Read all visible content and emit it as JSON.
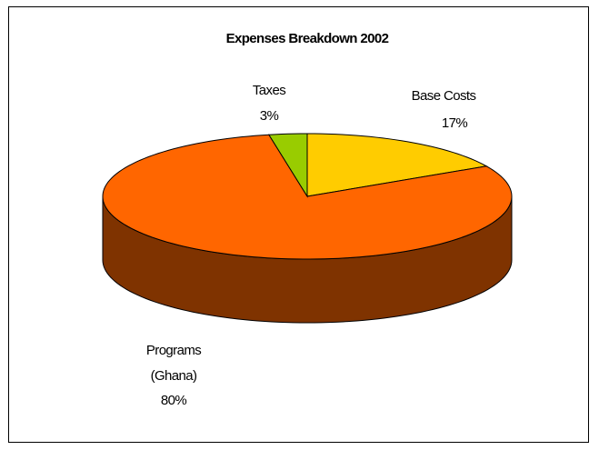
{
  "chart_data": {
    "type": "pie",
    "title": "Expenses Breakdown 2002",
    "three_d": true,
    "categories": [
      "Base Costs",
      "Programs (Ghana)",
      "Taxes"
    ],
    "values": [
      17,
      80,
      3
    ],
    "unit": "%",
    "labels": [
      {
        "lines": [
          "Base Costs",
          "17%"
        ]
      },
      {
        "lines": [
          "Programs",
          "(Ghana)",
          "80%"
        ]
      },
      {
        "lines": [
          "Taxes",
          "3%"
        ]
      }
    ],
    "colors": {
      "base_costs": "#FFCC00",
      "programs": "#FF6600",
      "programs_side": "#7F3300",
      "taxes": "#99CC00",
      "outline": "#000000"
    },
    "legend": "none",
    "grid": false
  }
}
